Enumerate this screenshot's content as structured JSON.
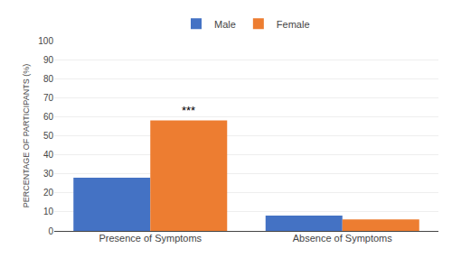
{
  "chart_data": {
    "type": "bar",
    "categories": [
      "Presence of Symptoms",
      "Absence of Symptoms"
    ],
    "series": [
      {
        "name": "Male",
        "color": "#4472C4",
        "values": [
          28,
          8
        ]
      },
      {
        "name": "Female",
        "color": "#ED7D31",
        "values": [
          58,
          6
        ]
      }
    ],
    "ylabel": "PERCENTAGE OF PARTICIPANTS (%)",
    "ylim": [
      0,
      100
    ],
    "yticks": [
      0,
      10,
      20,
      30,
      40,
      50,
      60,
      70,
      80,
      90,
      100
    ],
    "grid": true,
    "legend": "top",
    "annotations": [
      {
        "text": "***",
        "category": "Presence of Symptoms",
        "series": "Female"
      }
    ]
  }
}
